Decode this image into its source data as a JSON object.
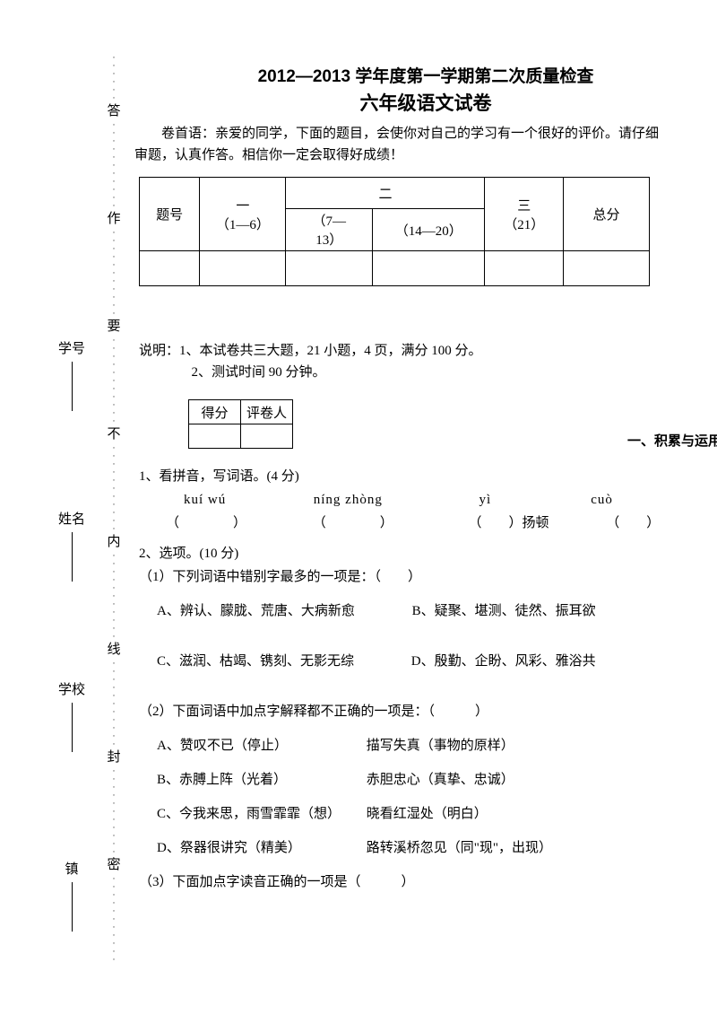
{
  "sidebar": {
    "fields": [
      "镇",
      "学校",
      "姓名",
      "学号"
    ],
    "seal_chars": [
      "密",
      "封",
      "线",
      "内",
      "不",
      "要",
      "作",
      "答"
    ]
  },
  "header": {
    "title_line1": "2012—2013 学年度第一学期第二次质量检查",
    "title_line2": "六年级语文试卷",
    "intro": "卷首语：亲爱的同学，下面的题目，会使你对自己的学习有一个很好的评价。请仔细审题，认真作答。相信你一定会取得好成绩！"
  },
  "score_table": {
    "h_tihao": "题号",
    "h_one": "一\n（1—6）",
    "h_two": "二",
    "h_two_a": "（7—\n13）",
    "h_two_b": "（14—20）",
    "h_three": "三\n（21）",
    "h_total": "总分"
  },
  "instructions": {
    "line1": "说明：1、本试卷共三大题，21 小题，4 页，满分 100 分。",
    "line2": "2、测试时间 90 分钟。"
  },
  "small_table": {
    "defen": "得分",
    "pingjuan": "评卷人"
  },
  "section1_title": "一、积累与运用",
  "q1": {
    "title": "1、看拼音，写词语。(4 分)",
    "p1": "kuí   wú",
    "p2": "níng zhòng",
    "p3": "yì",
    "p4": "cuò",
    "blank_a": "（　　　　）",
    "blank_b": "（　　　　）",
    "blank_c": "（　　）扬顿",
    "blank_d": "（　　）"
  },
  "q2": {
    "title": "2、选项。(10 分)",
    "sub1": {
      "q": "（1）下列词语中错别字最多的一项是：（　　）",
      "optA": "A、辨认、朦胧、荒唐、大病新愈",
      "optB": "B、疑聚、堪测、徒然、振耳欲",
      "optC": "C、滋润、枯竭、镌刻、无影无综",
      "optD": "D、殷勤、企盼、风彩、雅浴共"
    },
    "sub2": {
      "q": "（2）下面词语中加点字解释都不正确的一项是：（　　　）",
      "optA": "A、赞叹不已（停止）",
      "optA_ans": "描写失真（事物的原样）",
      "optB": "B、赤膊上阵（光着）",
      "optB_ans": "赤胆忠心（真挚、忠诚）",
      "optC": "C、今我来思，雨雪霏霏（想）",
      "optC_ans": "晓看红湿处（明白）",
      "optD": "D、祭器很讲究（精美）",
      "optD_ans": "路转溪桥忽见（同\"现\"，出现）"
    },
    "sub3": {
      "q": "（3）下面加点字读音正确的一项是（　　　）"
    }
  }
}
